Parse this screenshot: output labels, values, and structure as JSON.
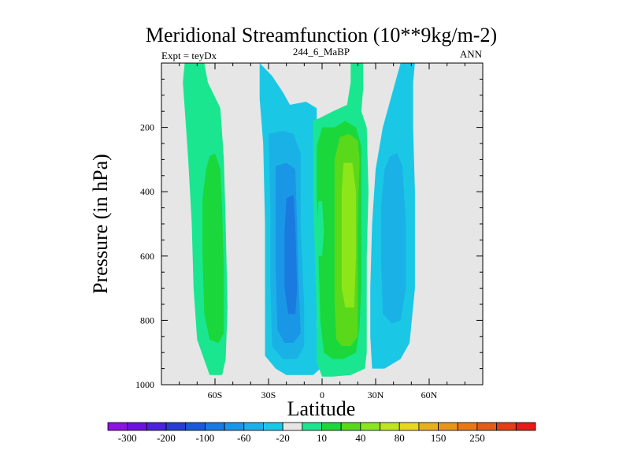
{
  "chart_data": {
    "type": "heatmap",
    "title": "Meridional Streamfunction (10**9kg/m-2)",
    "left_string": "Expt = teyDx",
    "center_string": "244_6_MaBP",
    "right_string": "ANN",
    "xlabel": "Latitude",
    "ylabel": "Pressure (in hPa)",
    "xlim": [
      -90,
      90
    ],
    "ylim": [
      1000,
      0
    ],
    "x_ticks": [
      {
        "value": -60,
        "label": "60S"
      },
      {
        "value": -30,
        "label": "30S"
      },
      {
        "value": 0,
        "label": "0"
      },
      {
        "value": 30,
        "label": "30N"
      },
      {
        "value": 60,
        "label": "60N"
      }
    ],
    "y_ticks": [
      {
        "value": 200,
        "label": "200"
      },
      {
        "value": 400,
        "label": "400"
      },
      {
        "value": 600,
        "label": "600"
      },
      {
        "value": 800,
        "label": "800"
      },
      {
        "value": 1000,
        "label": "1000"
      }
    ],
    "background_color": "#e6e6e6",
    "colorbar": {
      "colors": [
        "#8c12e6",
        "#6a12e6",
        "#4a22e0",
        "#2a3cd8",
        "#1a5ad8",
        "#1a7ae0",
        "#1a96e6",
        "#1ab2e6",
        "#1ac8e6",
        "#e6e6e6",
        "#1ae690",
        "#1ad83c",
        "#5ad81a",
        "#8ce61a",
        "#bee61a",
        "#e6d81a",
        "#e6b21a",
        "#e6961a",
        "#e6781a",
        "#e65a1a",
        "#e63c1a",
        "#e61a1a"
      ],
      "labels": [
        "-300",
        "-200",
        "-100",
        "-60",
        "-20",
        "10",
        "40",
        "80",
        "150",
        "250"
      ]
    },
    "regions": [
      {
        "name": "sh-outer-cell",
        "color": "#1ae690",
        "polygon": [
          [
            -77,
            0
          ],
          [
            -66,
            0
          ],
          [
            -64,
            60
          ],
          [
            -57,
            140
          ],
          [
            -55,
            300
          ],
          [
            -54,
            500
          ],
          [
            -53,
            760
          ],
          [
            -54,
            920
          ],
          [
            -56,
            970
          ],
          [
            -63,
            970
          ],
          [
            -70,
            860
          ],
          [
            -72,
            700
          ],
          [
            -73,
            500
          ],
          [
            -75,
            300
          ],
          [
            -77,
            140
          ],
          [
            -78,
            60
          ]
        ]
      },
      {
        "name": "sh-outer-core",
        "color": "#1ad83c",
        "polygon": [
          [
            -63,
            290
          ],
          [
            -60,
            280
          ],
          [
            -57,
            330
          ],
          [
            -56,
            450
          ],
          [
            -55,
            650
          ],
          [
            -55,
            840
          ],
          [
            -58,
            870
          ],
          [
            -63,
            860
          ],
          [
            -66,
            780
          ],
          [
            -67,
            600
          ],
          [
            -67,
            420
          ],
          [
            -65,
            330
          ]
        ]
      },
      {
        "name": "sh-blue-cell",
        "color": "#1ac8e6",
        "polygon": [
          [
            -35,
            0
          ],
          [
            -28,
            40
          ],
          [
            -22,
            90
          ],
          [
            -18,
            130
          ],
          [
            -9,
            120
          ],
          [
            -3,
            140
          ],
          [
            -3,
            820
          ],
          [
            -1,
            950
          ],
          [
            -5,
            970
          ],
          [
            -20,
            970
          ],
          [
            -26,
            950
          ],
          [
            -32,
            910
          ],
          [
            -32,
            780
          ],
          [
            -32,
            500
          ],
          [
            -33,
            250
          ],
          [
            -35,
            110
          ]
        ]
      },
      {
        "name": "sh-blue-inner",
        "color": "#1ab2e6",
        "polygon": [
          [
            -30,
            220
          ],
          [
            -22,
            210
          ],
          [
            -16,
            220
          ],
          [
            -12,
            280
          ],
          [
            -12,
            500
          ],
          [
            -10,
            760
          ],
          [
            -10,
            880
          ],
          [
            -14,
            920
          ],
          [
            -22,
            920
          ],
          [
            -28,
            880
          ],
          [
            -29,
            700
          ],
          [
            -29,
            450
          ]
        ]
      },
      {
        "name": "sh-blue-core",
        "color": "#1a96e6",
        "polygon": [
          [
            -26,
            320
          ],
          [
            -20,
            310
          ],
          [
            -15,
            330
          ],
          [
            -14,
            500
          ],
          [
            -13,
            700
          ],
          [
            -12,
            840
          ],
          [
            -16,
            870
          ],
          [
            -21,
            870
          ],
          [
            -25,
            830
          ],
          [
            -26,
            650
          ],
          [
            -26,
            450
          ]
        ]
      },
      {
        "name": "sh-blue-deep",
        "color": "#1a7ae0",
        "polygon": [
          [
            -20,
            420
          ],
          [
            -16,
            410
          ],
          [
            -15,
            500
          ],
          [
            -14,
            700
          ],
          [
            -15,
            780
          ],
          [
            -19,
            780
          ],
          [
            -21,
            700
          ],
          [
            -21,
            520
          ]
        ]
      },
      {
        "name": "tropical-cell",
        "color": "#1ae690",
        "polygon": [
          [
            16,
            0
          ],
          [
            23,
            0
          ],
          [
            23,
            80
          ],
          [
            22,
            150
          ],
          [
            25,
            200
          ],
          [
            26,
            400
          ],
          [
            25,
            600
          ],
          [
            25,
            800
          ],
          [
            25,
            900
          ],
          [
            24,
            950
          ],
          [
            16,
            970
          ],
          [
            6,
            975
          ],
          [
            0,
            975
          ],
          [
            -3,
            930
          ],
          [
            -3,
            800
          ],
          [
            -4,
            600
          ],
          [
            -5,
            400
          ],
          [
            -5,
            180
          ],
          [
            -1,
            170
          ],
          [
            6,
            150
          ],
          [
            14,
            130
          ],
          [
            16,
            60
          ]
        ]
      },
      {
        "name": "tropical-green",
        "color": "#1ad83c",
        "polygon": [
          [
            7,
            200
          ],
          [
            13,
            180
          ],
          [
            19,
            200
          ],
          [
            22,
            260
          ],
          [
            22,
            500
          ],
          [
            22,
            700
          ],
          [
            21,
            820
          ],
          [
            19,
            900
          ],
          [
            12,
            920
          ],
          [
            6,
            920
          ],
          [
            1,
            900
          ],
          [
            -1,
            800
          ],
          [
            -2,
            600
          ],
          [
            -3,
            400
          ],
          [
            -3,
            260
          ],
          [
            0,
            200
          ]
        ]
      },
      {
        "name": "tropical-lime",
        "color": "#5ad81a",
        "polygon": [
          [
            10,
            230
          ],
          [
            15,
            220
          ],
          [
            20,
            240
          ],
          [
            21,
            300
          ],
          [
            20,
            500
          ],
          [
            20,
            700
          ],
          [
            20,
            850
          ],
          [
            16,
            880
          ],
          [
            11,
            880
          ],
          [
            8,
            860
          ],
          [
            7,
            750
          ],
          [
            7,
            600
          ],
          [
            7,
            450
          ],
          [
            7,
            300
          ]
        ]
      },
      {
        "name": "tropical-yellow",
        "color": "#8ce61a",
        "polygon": [
          [
            12,
            310
          ],
          [
            17,
            310
          ],
          [
            19,
            400
          ],
          [
            19,
            600
          ],
          [
            18,
            760
          ],
          [
            13,
            760
          ],
          [
            11,
            700
          ],
          [
            11,
            500
          ],
          [
            11,
            400
          ]
        ]
      },
      {
        "name": "equatorial-spot",
        "color": "#1ae690",
        "polygon": [
          [
            -2,
            430
          ],
          [
            0,
            430
          ],
          [
            1,
            520
          ],
          [
            0,
            600
          ],
          [
            -2,
            600
          ],
          [
            -3,
            520
          ]
        ]
      },
      {
        "name": "nh-outer-cell",
        "color": "#1ac8e6",
        "polygon": [
          [
            44,
            0
          ],
          [
            52,
            0
          ],
          [
            51,
            60
          ],
          [
            51,
            200
          ],
          [
            52,
            400
          ],
          [
            52,
            700
          ],
          [
            49,
            870
          ],
          [
            44,
            920
          ],
          [
            35,
            950
          ],
          [
            28,
            950
          ],
          [
            27,
            850
          ],
          [
            27,
            700
          ],
          [
            28,
            500
          ],
          [
            30,
            330
          ],
          [
            34,
            200
          ],
          [
            38,
            120
          ],
          [
            41,
            60
          ]
        ]
      },
      {
        "name": "nh-outer-inner",
        "color": "#1ab2e6",
        "polygon": [
          [
            38,
            290
          ],
          [
            42,
            280
          ],
          [
            45,
            320
          ],
          [
            47,
            500
          ],
          [
            47,
            700
          ],
          [
            44,
            800
          ],
          [
            39,
            810
          ],
          [
            34,
            780
          ],
          [
            33,
            600
          ],
          [
            33,
            450
          ],
          [
            35,
            330
          ]
        ]
      }
    ]
  }
}
